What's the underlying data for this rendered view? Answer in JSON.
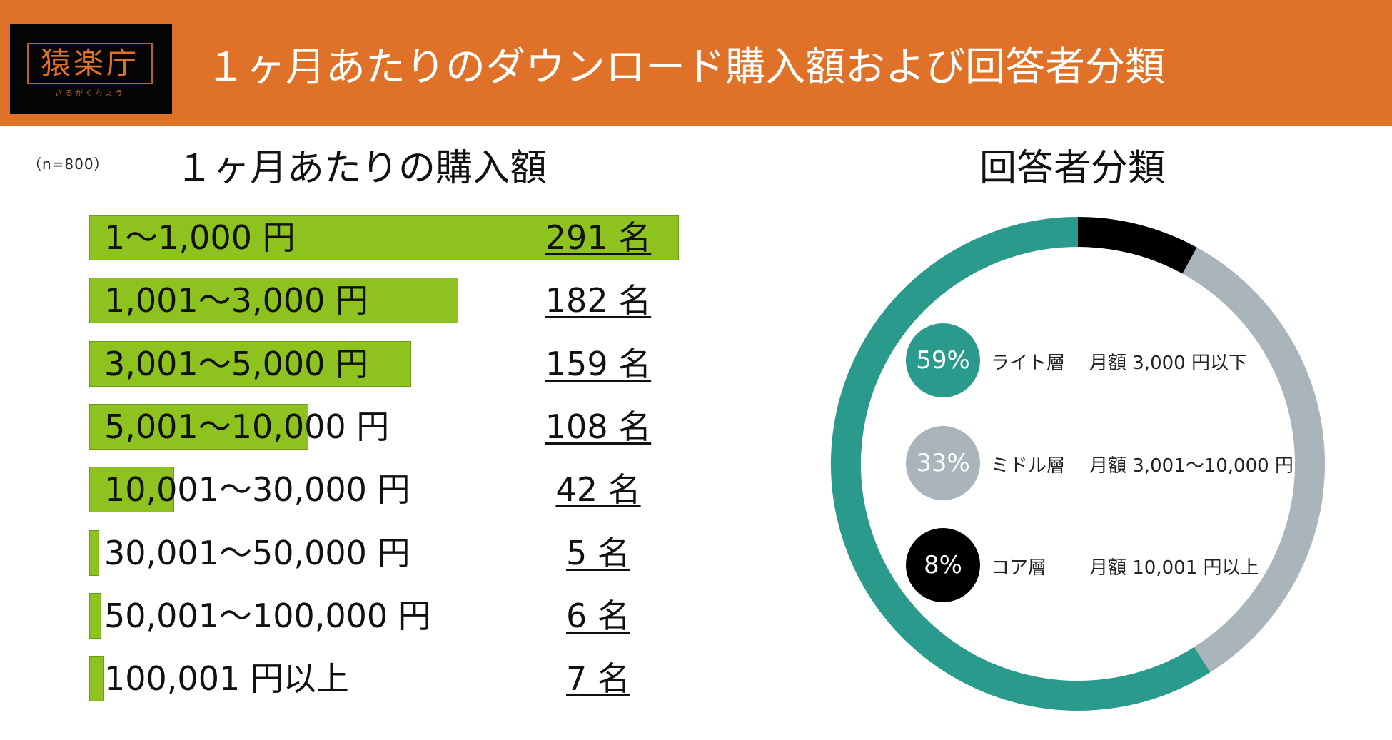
{
  "header": {
    "logo_text": "猿楽庁",
    "logo_sub": "さるがくちょう",
    "title": "１ヶ月あたりのダウンロード購入額および回答者分類"
  },
  "colors": {
    "header_bg": "#E07128",
    "bar": "#8DC21F",
    "light": "#2A9A8C",
    "middle": "#A9B5BA",
    "core": "#000000"
  },
  "n_note": "（n=800）",
  "chart_data": [
    {
      "type": "bar",
      "orientation": "horizontal",
      "title": "１ヶ月あたりの購入額",
      "categories": [
        "1〜1,000 円",
        "1,001〜3,000 円",
        "3,001〜5,000 円",
        "5,001〜10,000 円",
        "10,001〜30,000 円",
        "30,001〜50,000 円",
        "50,001〜100,000 円",
        "100,001 円以上"
      ],
      "values": [
        291,
        182,
        159,
        108,
        42,
        5,
        6,
        7
      ],
      "value_labels": [
        "291 名",
        "182 名",
        "159 名",
        "108 名",
        "42 名",
        "5 名",
        "6 名",
        "7 名"
      ],
      "unit": "名",
      "xlim": [
        0,
        291
      ]
    },
    {
      "type": "pie",
      "style": "donut",
      "title": "回答者分類",
      "slices": [
        {
          "name": "コア層",
          "value": 8,
          "label": "8%",
          "description": "月額 10,001 円以上",
          "color": "#000000"
        },
        {
          "name": "ミドル層",
          "value": 33,
          "label": "33%",
          "description": "月額 3,001〜10,000 円",
          "color": "#A9B5BA"
        },
        {
          "name": "ライト層",
          "value": 59,
          "label": "59%",
          "description": "月額 3,000 円以下",
          "color": "#2A9A8C"
        }
      ]
    }
  ]
}
